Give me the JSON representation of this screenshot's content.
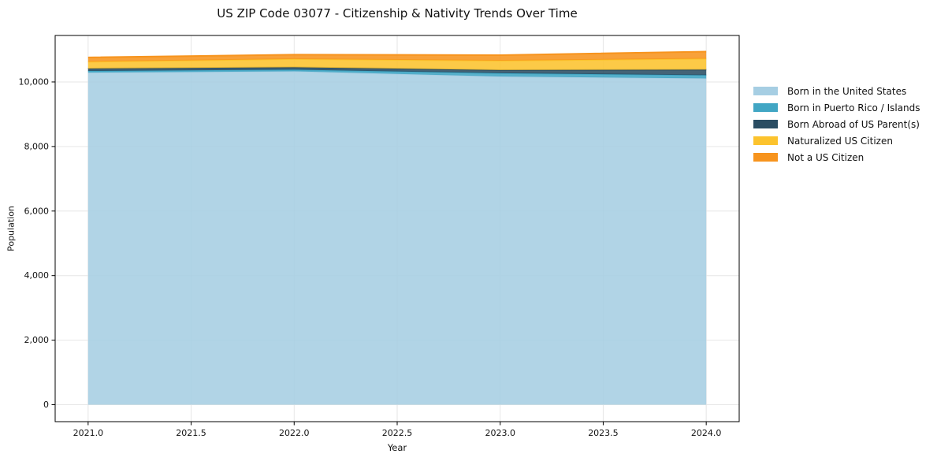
{
  "figure": {
    "title": "US ZIP Code 03077 - Citizenship & Nativity Trends Over Time"
  },
  "chart_data": {
    "type": "area",
    "stacked": true,
    "title": "US ZIP Code 03077 - Citizenship & Nativity Trends Over Time",
    "xlabel": "Year",
    "ylabel": "Population",
    "x": [
      2021,
      2022,
      2023,
      2024
    ],
    "series": [
      {
        "name": "Born in the United States",
        "color": "#a6cee3",
        "values": [
          10290,
          10330,
          10170,
          10110
        ]
      },
      {
        "name": "Born in Puerto Rico / Islands",
        "color": "#41a6c4",
        "values": [
          50,
          50,
          100,
          100
        ]
      },
      {
        "name": "Born Abroad of US Parent(s)",
        "color": "#2a4d63",
        "values": [
          75,
          75,
          100,
          170
        ]
      },
      {
        "name": "Naturalized US Citizen",
        "color": "#fcc32d",
        "values": [
          210,
          255,
          290,
          340
        ]
      },
      {
        "name": "Not a US Citizen",
        "color": "#f7941e",
        "values": [
          135,
          135,
          170,
          220
        ]
      }
    ],
    "totals": [
      10760,
      10845,
      10830,
      10940
    ],
    "x_ticks": [
      "2021.0",
      "2021.5",
      "2022.0",
      "2022.5",
      "2023.0",
      "2023.5",
      "2024.0"
    ],
    "y_ticks": [
      "0",
      "2,000",
      "4,000",
      "6,000",
      "8,000",
      "10,000"
    ],
    "xlim": [
      2020.84,
      2024.16
    ],
    "ylim": [
      -525,
      11440
    ],
    "grid": true,
    "legend_position": "right-outside"
  },
  "colors": {
    "grid": "#e6e6e6",
    "frame": "#000000",
    "tick_text": "#111111",
    "background": "#ffffff"
  }
}
